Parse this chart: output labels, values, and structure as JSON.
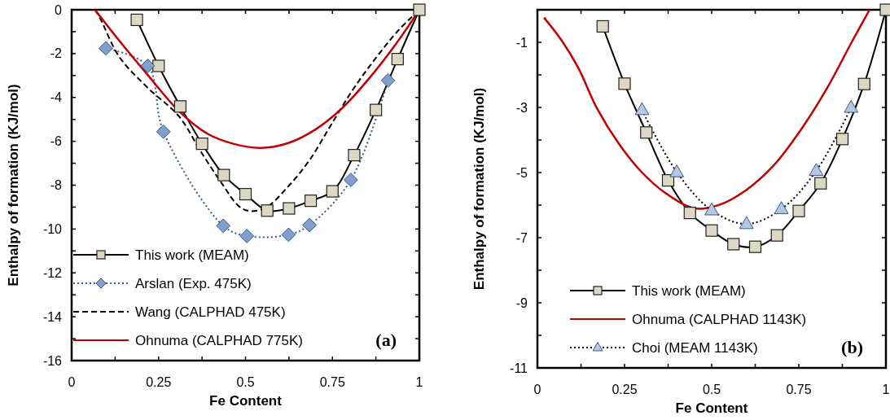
{
  "chart_data": [
    {
      "type": "line",
      "xlabel": "Fe Content",
      "ylabel": "Enthalpy of formation (KJ/mol)",
      "xlim": [
        0,
        1
      ],
      "ylim": [
        -16,
        0
      ],
      "xticks": [
        0,
        {
          "value": 0.125,
          "label": null
        },
        0.25,
        {
          "value": 0.375,
          "label": null
        },
        0.5,
        {
          "value": 0.625,
          "label": null
        },
        0.75,
        {
          "value": 0.875,
          "label": null
        },
        1
      ],
      "yticks": [
        0,
        {
          "value": -1,
          "label": null
        },
        -2,
        {
          "value": -3,
          "label": null
        },
        -4,
        {
          "value": -5,
          "label": null
        },
        -6,
        {
          "value": -7,
          "label": null
        },
        -8,
        {
          "value": -9,
          "label": null
        },
        -10,
        {
          "value": -11,
          "label": null
        },
        -12,
        {
          "value": -13,
          "label": null
        },
        -14,
        {
          "value": -15,
          "label": null
        },
        -16
      ],
      "legend": "bottom left",
      "grid": false,
      "annotations": [
        "(a)"
      ],
      "series": [
        {
          "name": "This work (MEAM)",
          "color": "#000000",
          "marker": "square",
          "line_style": "solid",
          "x": [
            0.1875,
            0.25,
            0.3125,
            0.375,
            0.4375,
            0.5,
            0.5625,
            0.625,
            0.6875,
            0.75,
            0.8125,
            0.875,
            0.9375,
            1
          ],
          "values": [
            -0.46,
            -2.56,
            -4.41,
            -6.11,
            -7.54,
            -8.41,
            -9.16,
            -9.06,
            -8.71,
            -8.28,
            -6.63,
            -4.57,
            -2.25,
            0
          ]
        },
        {
          "name": "Arslan (Exp. 475K)",
          "color": "#3b5a85",
          "marker": "diamond",
          "line_style": "dotted",
          "x": [
            0.098,
            0.219,
            0.264,
            0.436,
            0.504,
            0.624,
            0.684,
            0.803,
            0.91
          ],
          "values": [
            -1.76,
            -2.56,
            -5.56,
            -9.85,
            -10.32,
            -10.26,
            -9.82,
            -7.76,
            -3.22
          ]
        },
        {
          "name": "Wang (CALPHAD 475K)",
          "color": "#000000",
          "marker": "none",
          "line_style": "dashed",
          "x": [
            0.067,
            0.083,
            0.137,
            0.215,
            0.309,
            0.372,
            0.434,
            0.481,
            0.512,
            0.559,
            0.621,
            0.684,
            0.746,
            0.809,
            0.871,
            0.941,
            1
          ],
          "values": [
            0,
            -0.43,
            -2.15,
            -3.5,
            -4.87,
            -6.48,
            -7.97,
            -8.96,
            -9.18,
            -9.02,
            -8.09,
            -6.86,
            -5.25,
            -3.64,
            -2.28,
            -0.92,
            0
          ]
        },
        {
          "name": "Ohnuma (CALPHAD 775K)",
          "color": "#c00000",
          "marker": "none",
          "line_style": "solid",
          "x": [
            0.067,
            0.137,
            0.215,
            0.309,
            0.387,
            0.465,
            0.543,
            0.621,
            0.7,
            0.777,
            0.855,
            0.934,
            1
          ],
          "values": [
            0,
            -1.41,
            -2.9,
            -4.63,
            -5.62,
            -6.11,
            -6.3,
            -6.09,
            -5.47,
            -4.5,
            -3.14,
            -1.53,
            0
          ]
        }
      ]
    },
    {
      "type": "line",
      "xlabel": "Fe Content",
      "ylabel": "Enthalpy of formation (KJ/mol)",
      "xlim": [
        0,
        1
      ],
      "ylim": [
        -11,
        0
      ],
      "xticks": [
        0,
        {
          "value": 0.125,
          "label": null
        },
        0.25,
        {
          "value": 0.375,
          "label": null
        },
        0.5,
        {
          "value": 0.625,
          "label": null
        },
        0.75,
        {
          "value": 0.875,
          "label": null
        },
        1
      ],
      "yticks": [
        {
          "value": 0,
          "label": null
        },
        -1,
        {
          "value": -2,
          "label": null
        },
        -3,
        {
          "value": -4,
          "label": null
        },
        -5,
        {
          "value": -6,
          "label": null
        },
        -7,
        {
          "value": -8,
          "label": null
        },
        -9,
        {
          "value": -10,
          "label": null
        },
        -11
      ],
      "legend": "bottom left",
      "grid": false,
      "annotations": [
        "(b)"
      ],
      "series": [
        {
          "name": "This work (MEAM)",
          "color": "#000000",
          "marker": "square",
          "line_style": "solid",
          "x": [
            0.1875,
            0.25,
            0.3125,
            0.375,
            0.4375,
            0.5,
            0.5625,
            0.625,
            0.6875,
            0.75,
            0.8125,
            0.875,
            0.9375,
            1
          ],
          "values": [
            -0.51,
            -2.27,
            -3.77,
            -5.24,
            -6.24,
            -6.78,
            -7.2,
            -7.28,
            -6.93,
            -6.18,
            -5.33,
            -3.97,
            -2.28,
            0
          ]
        },
        {
          "name": "Ohnuma (CALPHAD 1143K)",
          "color": "#c00000",
          "marker": "none",
          "line_style": "solid",
          "x": [
            0.019,
            0.07,
            0.117,
            0.171,
            0.234,
            0.296,
            0.366,
            0.452,
            0.522,
            0.6,
            0.678,
            0.755,
            0.833,
            0.904,
            0.953
          ],
          "values": [
            -0.24,
            -0.95,
            -1.78,
            -3.03,
            -4.12,
            -4.95,
            -5.62,
            -6.1,
            -5.99,
            -5.53,
            -4.78,
            -3.7,
            -2.37,
            -0.95,
            0
          ]
        },
        {
          "name": "Choi (MEAM 1143K)",
          "color": "#000000",
          "marker": "triangle",
          "line_style": "dotted",
          "x": [
            0.3,
            0.4,
            0.5,
            0.6,
            0.7,
            0.8,
            0.9
          ],
          "values": [
            -3.08,
            -4.99,
            -6.16,
            -6.58,
            -6.12,
            -4.95,
            -3.01
          ]
        }
      ]
    }
  ]
}
